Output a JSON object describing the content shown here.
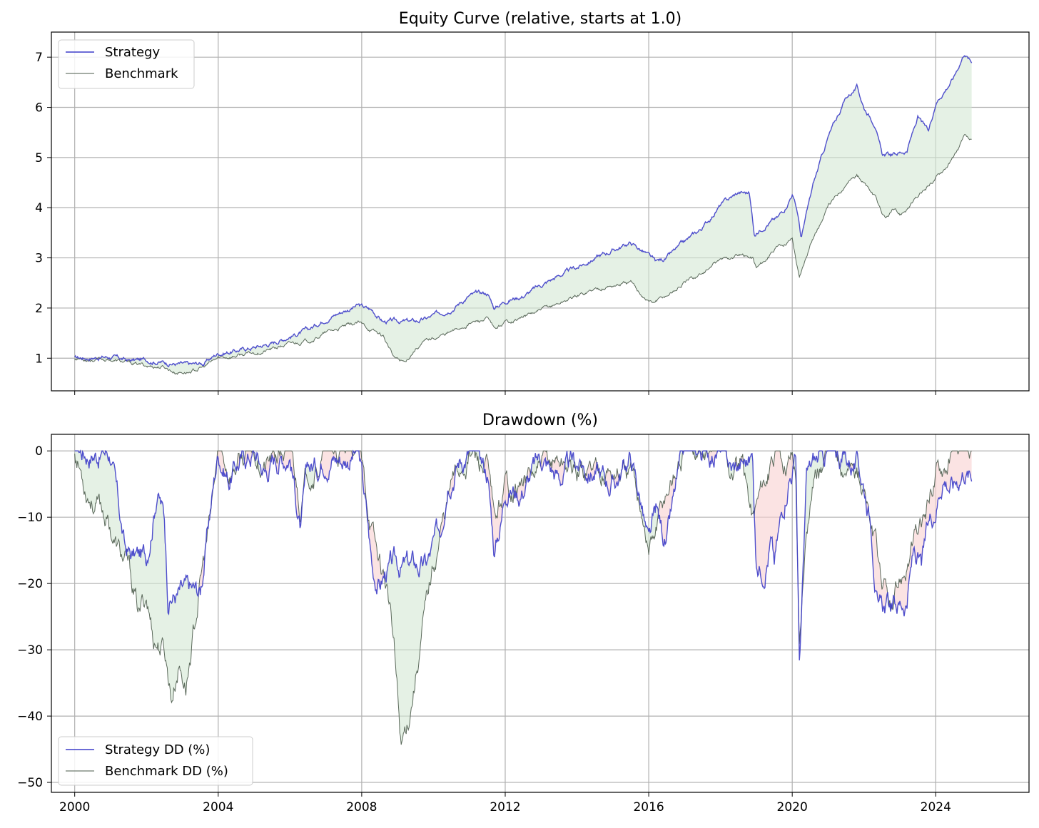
{
  "chart_data": [
    {
      "type": "line",
      "title": "Equity Curve (relative, starts at 1.0)",
      "xlabel": "",
      "ylabel": "",
      "xlim": [
        1999.35,
        2026.6
      ],
      "ylim": [
        0.35,
        7.5
      ],
      "yticks": [
        1,
        2,
        3,
        4,
        5,
        6,
        7
      ],
      "xticks": [
        2000,
        2004,
        2008,
        2012,
        2016,
        2020,
        2024
      ],
      "xtick_labels": [],
      "grid": true,
      "legend": "top-left",
      "fill_between": "green",
      "series": [
        {
          "name": "Strategy",
          "color": "#3c3cc8",
          "x": [
            2000.0,
            2000.5,
            2001.0,
            2001.5,
            2002.0,
            2002.5,
            2003.2,
            2003.6,
            2004.0,
            2004.5,
            2005.0,
            2005.5,
            2006.0,
            2006.5,
            2007.0,
            2007.5,
            2007.9,
            2008.3,
            2008.6,
            2009.5,
            2009.8,
            2010.2,
            2010.6,
            2011.0,
            2011.5,
            2011.7,
            2012.0,
            2012.5,
            2013.0,
            2013.5,
            2014.0,
            2014.5,
            2015.0,
            2015.5,
            2015.9,
            2016.2,
            2016.5,
            2017.0,
            2017.5,
            2018.0,
            2018.5,
            2018.8,
            2018.95,
            2019.3,
            2019.6,
            2019.8,
            2020.0,
            2020.15,
            2020.25,
            2020.6,
            2021.0,
            2021.5,
            2021.8,
            2022.0,
            2022.3,
            2022.5,
            2022.8,
            2023.2,
            2023.5,
            2023.8,
            2024.0,
            2024.5,
            2024.8,
            2025.0
          ],
          "values": [
            1.0,
            1.02,
            1.03,
            0.95,
            0.97,
            0.92,
            0.86,
            0.9,
            1.1,
            1.15,
            1.22,
            1.3,
            1.45,
            1.55,
            1.8,
            1.95,
            2.05,
            1.95,
            1.73,
            1.73,
            1.78,
            1.9,
            2.05,
            2.25,
            2.3,
            2.0,
            2.15,
            2.25,
            2.45,
            2.65,
            2.8,
            3.0,
            3.15,
            3.3,
            3.1,
            2.9,
            3.0,
            3.3,
            3.6,
            4.05,
            4.3,
            4.3,
            3.45,
            3.7,
            3.8,
            4.0,
            4.3,
            3.9,
            3.4,
            4.5,
            5.4,
            6.2,
            6.4,
            6.0,
            5.7,
            5.05,
            5.05,
            5.15,
            5.8,
            5.5,
            6.1,
            6.6,
            7.1,
            6.9
          ]
        },
        {
          "name": "Benchmark",
          "color": "#4a5a4a",
          "x": [
            2000.0,
            2000.5,
            2001.0,
            2001.5,
            2002.0,
            2002.5,
            2002.8,
            2003.2,
            2003.6,
            2004.0,
            2004.5,
            2005.0,
            2005.5,
            2006.0,
            2006.5,
            2007.0,
            2007.5,
            2007.9,
            2008.3,
            2008.6,
            2008.9,
            2009.2,
            2009.5,
            2009.8,
            2010.2,
            2010.6,
            2011.0,
            2011.5,
            2011.7,
            2012.0,
            2012.5,
            2013.0,
            2013.5,
            2014.0,
            2014.5,
            2015.0,
            2015.5,
            2015.9,
            2016.1,
            2016.5,
            2017.0,
            2017.5,
            2018.0,
            2018.5,
            2018.9,
            2019.0,
            2019.3,
            2019.6,
            2020.0,
            2020.2,
            2020.5,
            2021.0,
            2021.5,
            2021.8,
            2022.0,
            2022.3,
            2022.6,
            2022.8,
            2023.0,
            2023.5,
            2024.0,
            2024.5,
            2024.8,
            2025.0
          ],
          "values": [
            1.0,
            0.98,
            0.97,
            0.9,
            0.85,
            0.82,
            0.72,
            0.73,
            0.82,
            1.0,
            1.05,
            1.1,
            1.18,
            1.28,
            1.35,
            1.5,
            1.62,
            1.7,
            1.55,
            1.45,
            1.0,
            0.92,
            1.2,
            1.35,
            1.45,
            1.55,
            1.7,
            1.78,
            1.55,
            1.72,
            1.82,
            1.95,
            2.1,
            2.25,
            2.38,
            2.45,
            2.5,
            2.2,
            2.1,
            2.25,
            2.5,
            2.7,
            2.95,
            3.05,
            3.0,
            2.8,
            3.0,
            3.2,
            3.4,
            2.6,
            3.3,
            4.0,
            4.5,
            4.65,
            4.5,
            4.2,
            3.75,
            3.95,
            3.85,
            4.2,
            4.6,
            5.0,
            5.4,
            5.3
          ]
        }
      ]
    },
    {
      "type": "line",
      "title": "Drawdown (%)",
      "xlabel": "",
      "ylabel": "",
      "xlim": [
        1999.35,
        2026.6
      ],
      "ylim": [
        -51.5,
        2.5
      ],
      "yticks": [
        0,
        -10,
        -20,
        -30,
        -40,
        -50
      ],
      "ytick_labels": [
        "0",
        "−10",
        "−20",
        "−30",
        "−40",
        "−50"
      ],
      "xticks": [
        2000,
        2004,
        2008,
        2012,
        2016,
        2020,
        2024
      ],
      "xtick_labels": [
        "2000",
        "2004",
        "2008",
        "2012",
        "2016",
        "2020",
        "2024"
      ],
      "grid": true,
      "legend": "bottom-left",
      "fill_between": "green where strategy above benchmark, red where below",
      "series": [
        {
          "name": "Strategy DD (%)",
          "color": "#3c3cc8",
          "x": [
            2000.0,
            2000.5,
            2001.0,
            2001.2,
            2001.4,
            2001.6,
            2001.8,
            2002.0,
            2002.3,
            2002.5,
            2002.6,
            2003.0,
            2003.5,
            2003.8,
            2004.0,
            2004.3,
            2004.5,
            2005.0,
            2005.3,
            2005.6,
            2006.0,
            2006.3,
            2006.5,
            2006.8,
            2007.0,
            2007.5,
            2007.9,
            2008.1,
            2008.3,
            2008.5,
            2008.7,
            2009.0,
            2009.4,
            2009.8,
            2010.2,
            2010.4,
            2010.7,
            2011.0,
            2011.5,
            2011.7,
            2011.9,
            2012.0,
            2012.4,
            2012.8,
            2013.0,
            2013.5,
            2014.0,
            2014.5,
            2015.0,
            2015.5,
            2015.8,
            2016.0,
            2016.2,
            2016.5,
            2016.8,
            2017.0,
            2017.5,
            2018.0,
            2018.3,
            2018.6,
            2018.9,
            2019.0,
            2019.2,
            2019.4,
            2019.5,
            2019.7,
            2019.9,
            2020.1,
            2020.2,
            2020.4,
            2020.6,
            2020.9,
            2021.0,
            2021.5,
            2021.8,
            2022.0,
            2022.2,
            2022.4,
            2022.5,
            2022.8,
            2023.0,
            2023.2,
            2023.4,
            2023.6,
            2023.8,
            2024.0,
            2024.2,
            2024.5,
            2024.8,
            2025.0
          ],
          "values": [
            0,
            0,
            0,
            -8,
            -15,
            -16,
            -16,
            -16,
            -5,
            -10,
            -21.5,
            -21.5,
            -21.5,
            -8,
            0,
            -4,
            -2,
            0,
            -3,
            -1,
            0,
            -12,
            -3,
            -2,
            0,
            -1,
            0,
            -8,
            -18,
            -20,
            -18,
            -17.5,
            -17.5,
            -17.5,
            -12,
            -3,
            -1,
            0,
            -3,
            -15,
            -10,
            -5,
            -6,
            -3,
            -1,
            -4,
            -2,
            -3,
            -5,
            -1,
            -8,
            -15,
            -10,
            -14,
            -5,
            -1,
            0,
            0,
            -3,
            -2,
            -1,
            -17.5,
            -17,
            -13,
            -17,
            -10,
            -3,
            -1,
            -32,
            -5,
            -2,
            -1,
            0,
            -1,
            -2,
            -5,
            -10,
            -24,
            -24,
            -23.5,
            -23,
            -22,
            -15,
            -18,
            -12,
            -8,
            -3,
            -5,
            -2,
            -4
          ]
        },
        {
          "name": "Benchmark DD (%)",
          "color": "#4a5a4a",
          "x": [
            2000.0,
            2000.3,
            2000.6,
            2000.9,
            2001.2,
            2001.5,
            2001.8,
            2002.0,
            2002.2,
            2002.5,
            2002.7,
            2002.9,
            2003.1,
            2003.3,
            2003.5,
            2003.8,
            2004.0,
            2004.3,
            2004.5,
            2005.0,
            2005.3,
            2005.6,
            2006.0,
            2006.3,
            2006.5,
            2006.8,
            2007.0,
            2007.5,
            2007.9,
            2008.1,
            2008.4,
            2008.7,
            2008.9,
            2009.1,
            2009.3,
            2009.6,
            2009.9,
            2010.2,
            2010.5,
            2010.8,
            2011.0,
            2011.5,
            2011.7,
            2012.0,
            2012.5,
            2013.0,
            2013.5,
            2014.0,
            2014.5,
            2015.0,
            2015.5,
            2015.8,
            2016.0,
            2016.2,
            2016.5,
            2016.8,
            2017.0,
            2017.5,
            2018.0,
            2018.3,
            2018.6,
            2018.9,
            2019.0,
            2019.2,
            2019.5,
            2019.8,
            2020.0,
            2020.1,
            2020.2,
            2020.4,
            2020.6,
            2020.9,
            2021.0,
            2021.5,
            2021.8,
            2022.0,
            2022.2,
            2022.5,
            2022.8,
            2023.0,
            2023.3,
            2023.6,
            2023.9,
            2024.0,
            2024.3,
            2024.6,
            2024.8,
            2025.0
          ],
          "values": [
            0,
            -5,
            -8,
            -10,
            -15,
            -18,
            -25,
            -22,
            -28,
            -30,
            -37,
            -32,
            -35,
            -28,
            -20,
            -10,
            0,
            -3,
            -2,
            0,
            -2,
            -1,
            0,
            -8,
            -3,
            -2,
            0,
            -1,
            0,
            -6,
            -15,
            -20,
            -30,
            -45,
            -40,
            -30,
            -20,
            -12,
            -5,
            -2,
            0,
            -3,
            -12,
            -5,
            -5,
            -3,
            -1,
            -3,
            -2,
            -3,
            -4,
            -8,
            -15,
            -12,
            -6,
            -2,
            0,
            0,
            0,
            -3,
            -2,
            -10,
            -8,
            -4,
            -2,
            -1,
            0,
            -3,
            -30,
            -10,
            -3,
            -1,
            0,
            -1,
            -3,
            -6,
            -12,
            -20,
            -25,
            -20,
            -15,
            -12,
            -5,
            -3,
            -1,
            0,
            -1,
            -3
          ]
        }
      ]
    }
  ]
}
